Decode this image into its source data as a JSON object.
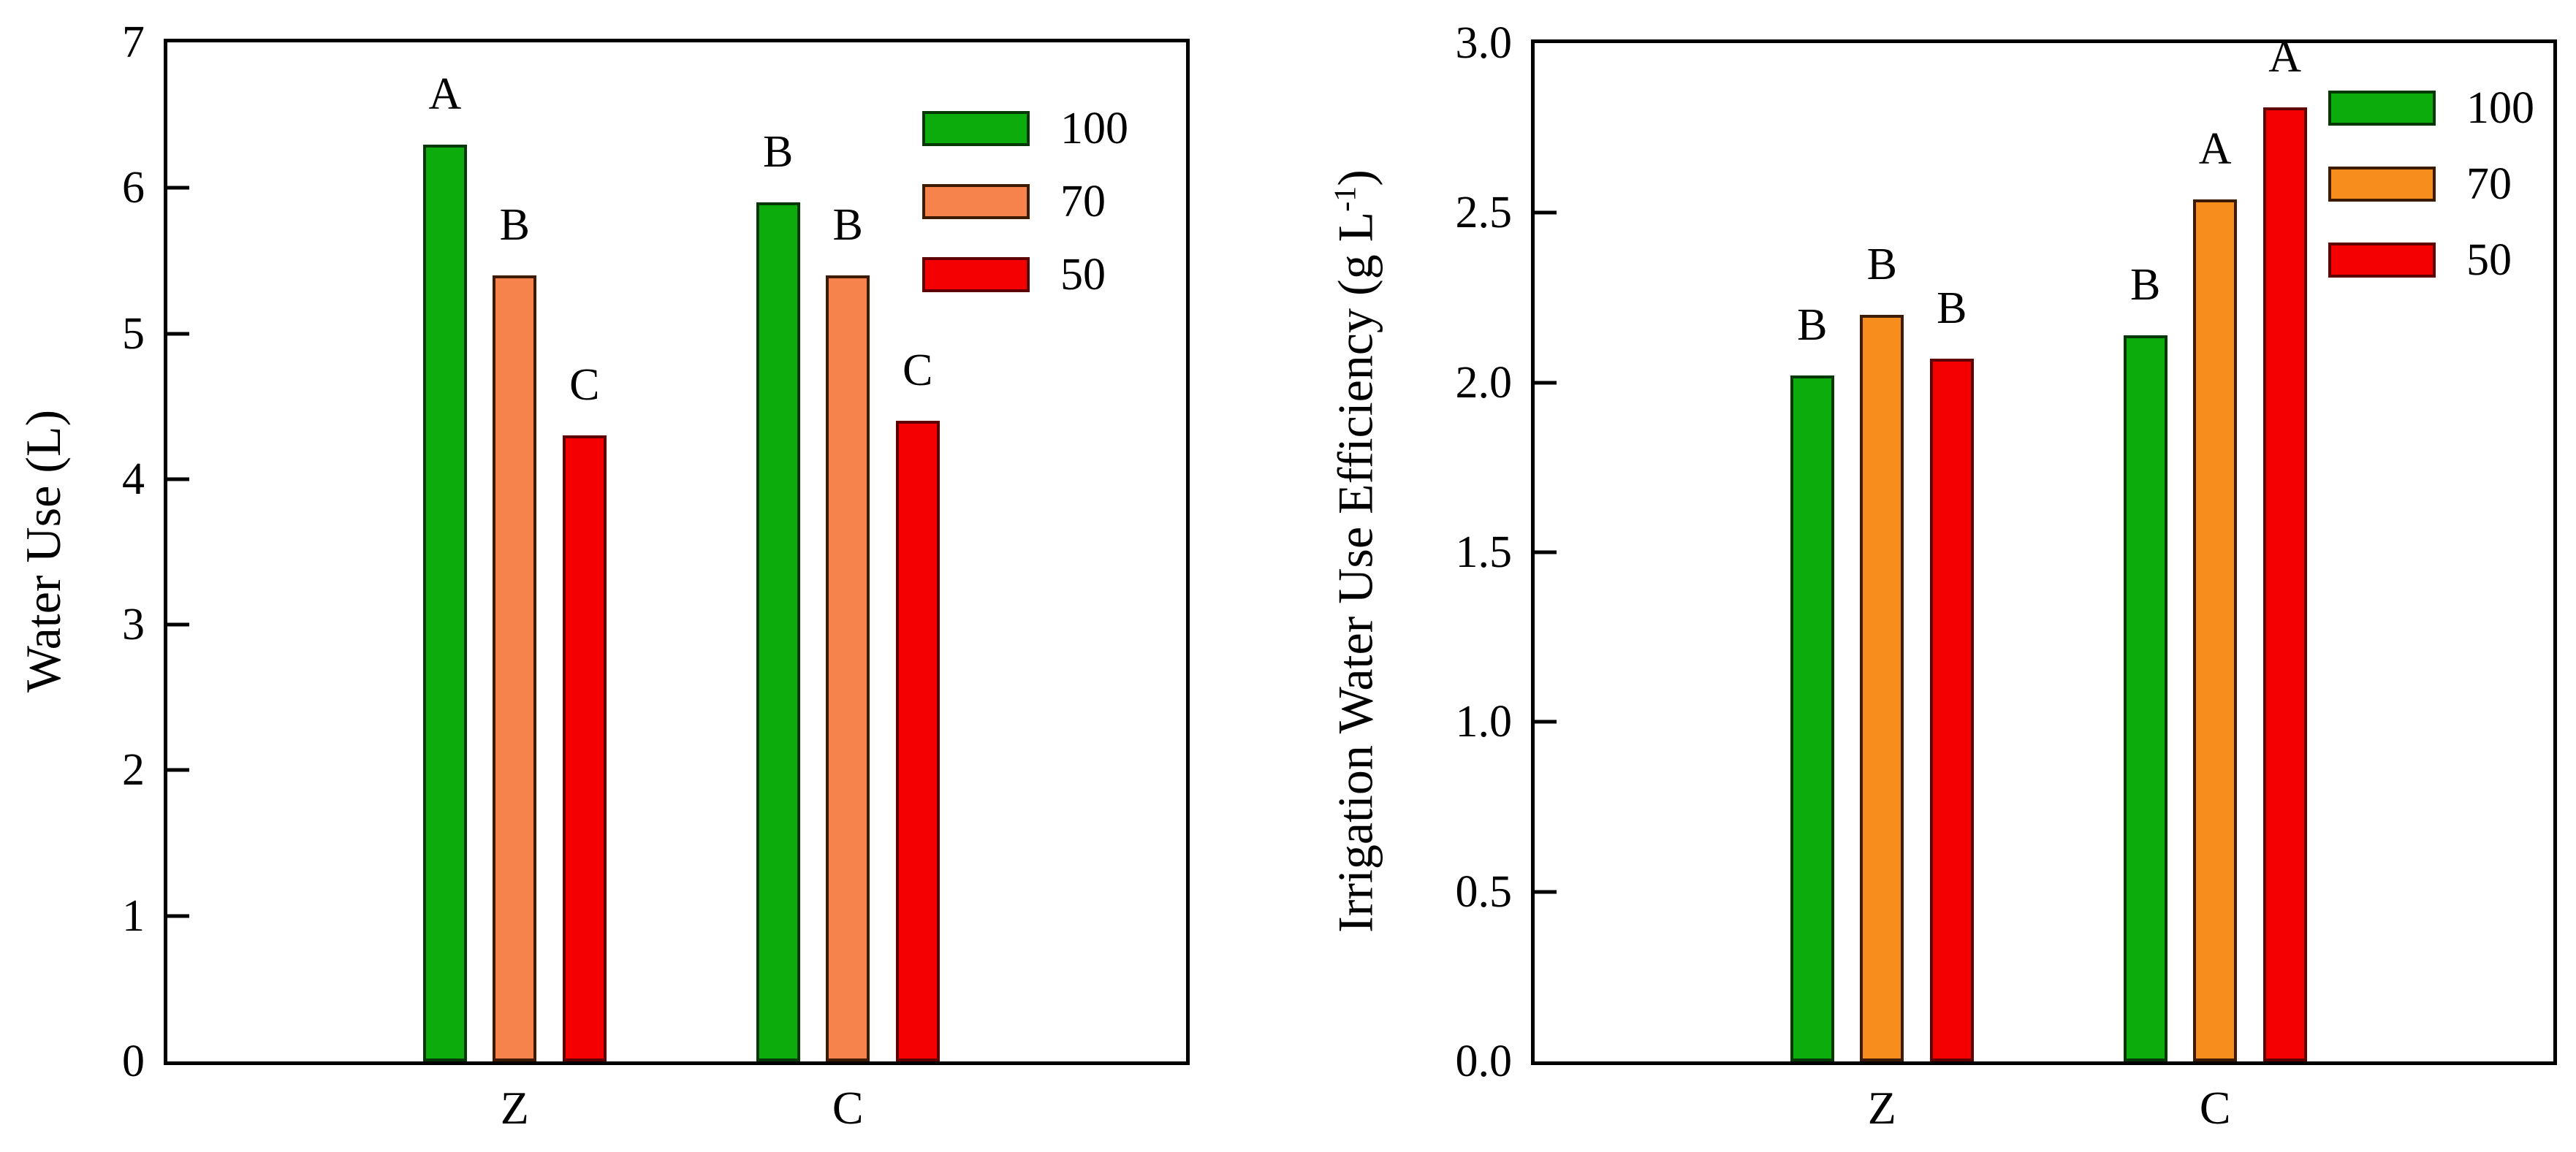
{
  "page": {
    "background": "#ffffff",
    "description_colors": {
      "green_bar": "#0DAC0D",
      "salmon_bar": "#F5834B",
      "orange_bar": "#F78D1D",
      "red_bar": "#F40000",
      "axis": "#000000"
    }
  },
  "chart_data": [
    {
      "type": "bar",
      "title": "",
      "xlabel": "",
      "ylabel": "Water Use (L)",
      "categories": [
        "Z",
        "C"
      ],
      "series": [
        {
          "name": "100",
          "color": "#0DAC0D",
          "border": "#063806",
          "values": [
            6.3,
            5.9
          ],
          "letters": [
            "A",
            "B"
          ]
        },
        {
          "name": "70",
          "color": "#F5834B",
          "border": "#3D1A02",
          "values": [
            5.4,
            5.4
          ],
          "letters": [
            "B",
            "B"
          ]
        },
        {
          "name": "50",
          "color": "#F40000",
          "border": "#5E0000",
          "values": [
            4.3,
            4.4
          ],
          "letters": [
            "C",
            "C"
          ]
        }
      ],
      "ylim": [
        0,
        7
      ],
      "yticks": [
        {
          "label": "0",
          "value": 0
        },
        {
          "label": "1",
          "value": 1
        },
        {
          "label": "2",
          "value": 2
        },
        {
          "label": "3",
          "value": 3
        },
        {
          "label": "4",
          "value": 4
        },
        {
          "label": "5",
          "value": 5
        },
        {
          "label": "6",
          "value": 6
        },
        {
          "label": "7",
          "value": 7
        }
      ],
      "grid": false,
      "legend_position": "upper-right-inside",
      "legend_labels": [
        "100",
        "70",
        "50"
      ]
    },
    {
      "type": "bar",
      "title": "",
      "xlabel": "",
      "ylabel": "Irrigation Water Use Efficiency (g L-1)",
      "ylabel_parts": {
        "pre": "Irrigation Water Use Efficiency (g L",
        "sup": "-1",
        "post": ")"
      },
      "categories": [
        "Z",
        "C"
      ],
      "series": [
        {
          "name": "100",
          "color": "#0DAC0D",
          "border": "#063806",
          "values": [
            2.02,
            2.14
          ],
          "letters": [
            "B",
            "B"
          ]
        },
        {
          "name": "70",
          "color": "#F78D1D",
          "border": "#3D1A02",
          "values": [
            2.2,
            2.54
          ],
          "letters": [
            "B",
            "A"
          ]
        },
        {
          "name": "50",
          "color": "#F40000",
          "border": "#5E0000",
          "values": [
            2.07,
            2.81
          ],
          "letters": [
            "B",
            "A"
          ]
        }
      ],
      "ylim": [
        0,
        3.0
      ],
      "yticks": [
        {
          "label": "0.0",
          "value": 0.0
        },
        {
          "label": "0.5",
          "value": 0.5
        },
        {
          "label": "1.0",
          "value": 1.0
        },
        {
          "label": "1.5",
          "value": 1.5
        },
        {
          "label": "2.0",
          "value": 2.0
        },
        {
          "label": "2.5",
          "value": 2.5
        },
        {
          "label": "3.0",
          "value": 3.0
        }
      ],
      "grid": false,
      "legend_position": "upper-right-inside",
      "legend_labels": [
        "100",
        "70",
        "50"
      ]
    }
  ]
}
